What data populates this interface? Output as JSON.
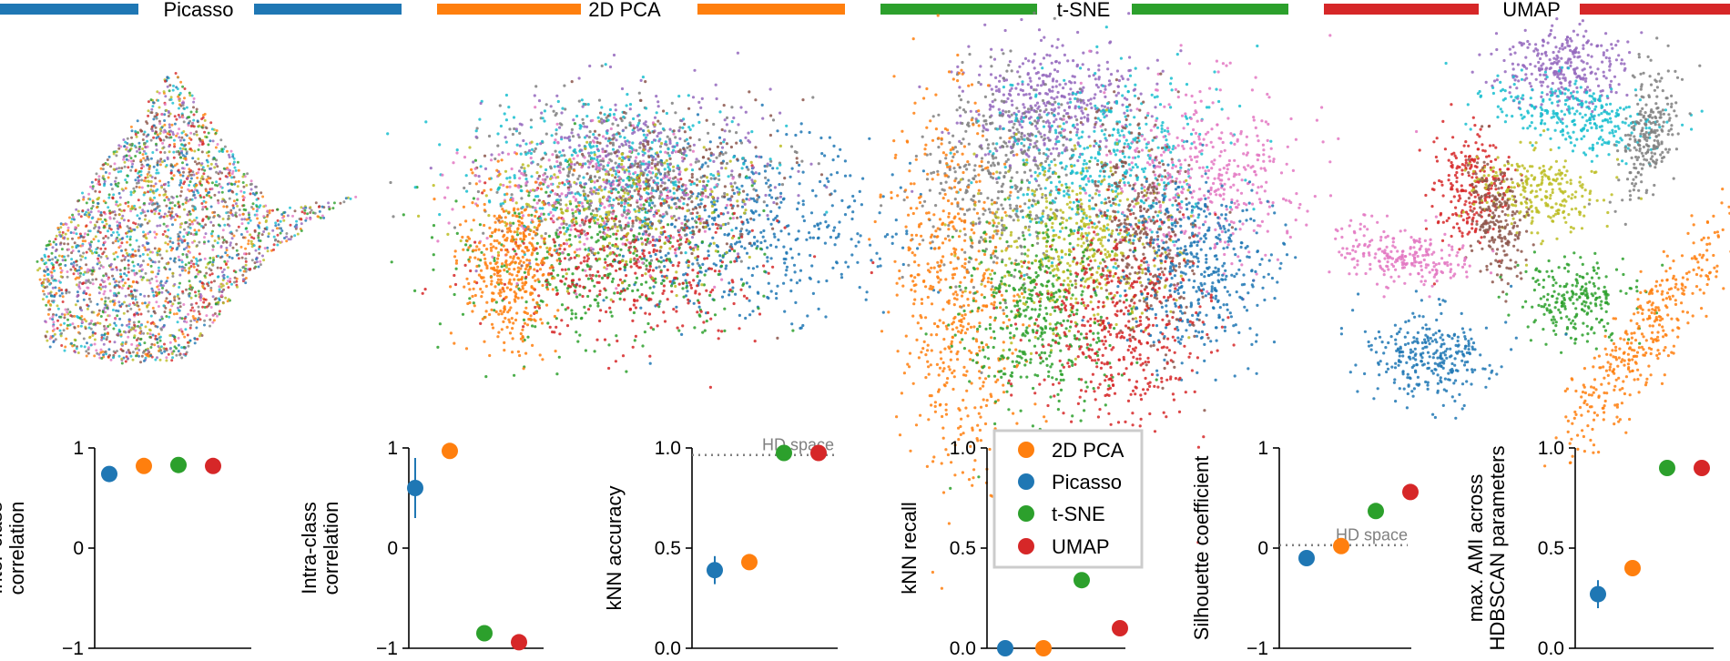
{
  "colors": {
    "picasso": "#1f77b4",
    "pca": "#ff7f0e",
    "tsne": "#2ca02c",
    "umap": "#d62728",
    "reference_line": "#808080",
    "legend_border": "#cccccc"
  },
  "cluster_palette": [
    "#1f77b4",
    "#ff7f0e",
    "#2ca02c",
    "#d62728",
    "#9467bd",
    "#8c564b",
    "#e377c2",
    "#7f7f7f",
    "#bcbd22",
    "#17becf"
  ],
  "embeddings": {
    "headers": [
      {
        "key": "picasso",
        "label": "Picasso"
      },
      {
        "key": "pca",
        "label": "2D PCA"
      },
      {
        "key": "tsne",
        "label": "t-SNE"
      },
      {
        "key": "umap",
        "label": "UMAP"
      }
    ]
  },
  "legend": [
    {
      "key": "pca",
      "label": "2D PCA"
    },
    {
      "key": "picasso",
      "label": "Picasso"
    },
    {
      "key": "tsne",
      "label": "t-SNE"
    },
    {
      "key": "umap",
      "label": "UMAP"
    }
  ],
  "chart_data": [
    {
      "type": "scatter",
      "ylabel": "Inter-class correlation",
      "ylabel_lines": [
        "Inter-class",
        "correlation"
      ],
      "ylim": [
        -1,
        1
      ],
      "yticks": [
        1,
        0,
        -1
      ],
      "ytick_labels": [
        "1",
        "0",
        "−1"
      ],
      "series": [
        {
          "key": "picasso",
          "y": 0.74,
          "err": 0
        },
        {
          "key": "pca",
          "y": 0.82,
          "err": 0
        },
        {
          "key": "tsne",
          "y": 0.83,
          "err": 0
        },
        {
          "key": "umap",
          "y": 0.82,
          "err": 0
        }
      ]
    },
    {
      "type": "scatter",
      "ylabel": "Intra-class correlation",
      "ylabel_lines": [
        "Intra-class",
        "correlation"
      ],
      "ylim": [
        -1,
        1
      ],
      "yticks": [
        1,
        0,
        -1
      ],
      "ytick_labels": [
        "1",
        "0",
        "−1"
      ],
      "series": [
        {
          "key": "picasso",
          "y": 0.6,
          "err": 0.3
        },
        {
          "key": "pca",
          "y": 0.97,
          "err": 0
        },
        {
          "key": "tsne",
          "y": -0.85,
          "err": 0
        },
        {
          "key": "umap",
          "y": -0.94,
          "err": 0
        }
      ]
    },
    {
      "type": "scatter",
      "ylabel": "kNN accuracy",
      "ylabel_lines": [
        "kNN accuracy"
      ],
      "ylim": [
        0,
        1
      ],
      "yticks": [
        1,
        0.5,
        0
      ],
      "ytick_labels": [
        "1.0",
        "0.5",
        "0.0"
      ],
      "reference": {
        "y": 0.965,
        "label": "HD space"
      },
      "series": [
        {
          "key": "picasso",
          "y": 0.39,
          "err": 0.07
        },
        {
          "key": "pca",
          "y": 0.43,
          "err": 0
        },
        {
          "key": "tsne",
          "y": 0.975,
          "err": 0
        },
        {
          "key": "umap",
          "y": 0.975,
          "err": 0
        }
      ]
    },
    {
      "type": "scatter",
      "ylabel": "kNN recall",
      "ylabel_lines": [
        "kNN recall"
      ],
      "ylim": [
        0,
        1
      ],
      "yticks": [
        1,
        0.5,
        0
      ],
      "ytick_labels": [
        "1.0",
        "0.5",
        "0.0"
      ],
      "series": [
        {
          "key": "picasso",
          "y": 0.0,
          "err": 0
        },
        {
          "key": "pca",
          "y": 0.0,
          "err": 0
        },
        {
          "key": "tsne",
          "y": 0.34,
          "err": 0
        },
        {
          "key": "umap",
          "y": 0.1,
          "err": 0
        }
      ]
    },
    {
      "type": "scatter",
      "ylabel": "Silhouette coefficient",
      "ylabel_lines": [
        "Silhouette coefficient"
      ],
      "ylim": [
        -1,
        1
      ],
      "yticks": [
        1,
        0,
        -1
      ],
      "ytick_labels": [
        "1",
        "0",
        "−1"
      ],
      "reference": {
        "y": 0.03,
        "label": "HD space"
      },
      "series": [
        {
          "key": "picasso",
          "y": -0.1,
          "err": 0
        },
        {
          "key": "pca",
          "y": 0.02,
          "err": 0
        },
        {
          "key": "tsne",
          "y": 0.37,
          "err": 0
        },
        {
          "key": "umap",
          "y": 0.56,
          "err": 0
        }
      ]
    },
    {
      "type": "scatter",
      "ylabel": "max. AMI across HDBSCAN parameters",
      "ylabel_lines": [
        "max. AMI across",
        "HDBSCAN parameters"
      ],
      "ylim": [
        0,
        1
      ],
      "yticks": [
        1,
        0.5,
        0
      ],
      "ytick_labels": [
        "1.0",
        "0.5",
        "0.0"
      ],
      "series": [
        {
          "key": "picasso",
          "y": 0.27,
          "err": 0.07
        },
        {
          "key": "pca",
          "y": 0.4,
          "err": 0
        },
        {
          "key": "tsne",
          "y": 0.9,
          "err": 0
        },
        {
          "key": "umap",
          "y": 0.9,
          "err": 0
        }
      ]
    }
  ]
}
